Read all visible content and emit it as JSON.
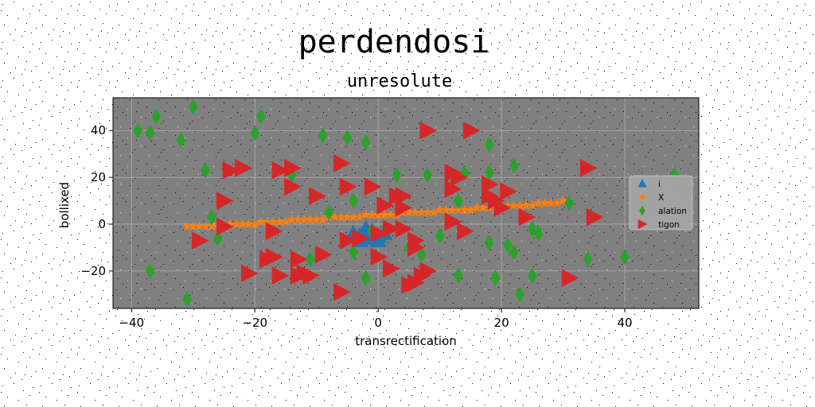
{
  "chart_data": {
    "type": "scatter",
    "suptitle": "perdendosi",
    "title": "unresolute",
    "xlabel": "transrectification",
    "ylabel": "bollixed",
    "xlim": [
      -43,
      52
    ],
    "ylim": [
      -36,
      54
    ],
    "xticks": [
      -40,
      -20,
      0,
      20,
      40
    ],
    "yticks": [
      -20,
      0,
      20,
      40
    ],
    "xtick_labels": [
      "−40",
      "−20",
      "0",
      "20",
      "40"
    ],
    "ytick_labels": [
      "−20",
      "0",
      "20",
      "40"
    ],
    "grid": true,
    "legend_position": "right",
    "plot_background": "#808080",
    "series": [
      {
        "name": "i",
        "marker": "triangle-up",
        "color": "#1f77b4",
        "points": [
          [
            -4,
            -4
          ],
          [
            -3,
            -5
          ],
          [
            -2,
            -6
          ],
          [
            -1,
            -3
          ],
          [
            0,
            -5
          ],
          [
            -2,
            -2
          ],
          [
            -3,
            -7
          ],
          [
            0,
            -7
          ],
          [
            1,
            -4
          ],
          [
            -1,
            -6
          ]
        ]
      },
      {
        "name": "X",
        "marker": "star",
        "color": "#ff7f0e",
        "points": [
          [
            -31,
            -1
          ],
          [
            -30,
            -1
          ],
          [
            -29,
            -1
          ],
          [
            -28,
            -1
          ],
          [
            -27,
            -1
          ],
          [
            -26,
            0
          ],
          [
            -25,
            0
          ],
          [
            -24,
            0
          ],
          [
            -23,
            0
          ],
          [
            -22,
            0
          ],
          [
            -21,
            0
          ],
          [
            -20,
            0
          ],
          [
            -19,
            1
          ],
          [
            -18,
            1
          ],
          [
            -17,
            1
          ],
          [
            -16,
            1
          ],
          [
            -15,
            1
          ],
          [
            -14,
            2
          ],
          [
            -13,
            2
          ],
          [
            -12,
            2
          ],
          [
            -11,
            2
          ],
          [
            -10,
            2
          ],
          [
            -9,
            2
          ],
          [
            -8,
            3
          ],
          [
            -7,
            3
          ],
          [
            -6,
            3
          ],
          [
            -5,
            3
          ],
          [
            -4,
            3
          ],
          [
            -3,
            3
          ],
          [
            -2,
            4
          ],
          [
            -1,
            4
          ],
          [
            0,
            4
          ],
          [
            1,
            4
          ],
          [
            2,
            4
          ],
          [
            3,
            4
          ],
          [
            4,
            5
          ],
          [
            5,
            5
          ],
          [
            6,
            5
          ],
          [
            7,
            5
          ],
          [
            8,
            5
          ],
          [
            9,
            5
          ],
          [
            10,
            6
          ],
          [
            11,
            6
          ],
          [
            12,
            6
          ],
          [
            13,
            6
          ],
          [
            14,
            6
          ],
          [
            15,
            6
          ],
          [
            16,
            7
          ],
          [
            17,
            7
          ],
          [
            18,
            7
          ],
          [
            19,
            7
          ],
          [
            20,
            7
          ],
          [
            21,
            8
          ],
          [
            22,
            8
          ],
          [
            23,
            8
          ],
          [
            24,
            8
          ],
          [
            25,
            8
          ],
          [
            26,
            9
          ],
          [
            27,
            9
          ],
          [
            28,
            9
          ],
          [
            29,
            9
          ],
          [
            30,
            10
          ]
        ]
      },
      {
        "name": "alation",
        "marker": "diamond",
        "color": "#2ca02c",
        "points": [
          [
            -39,
            40
          ],
          [
            -37,
            39
          ],
          [
            -36,
            46
          ],
          [
            -32,
            36
          ],
          [
            -30,
            50
          ],
          [
            -28,
            23
          ],
          [
            -27,
            3
          ],
          [
            -26,
            -6
          ],
          [
            -20,
            39
          ],
          [
            -19,
            46
          ],
          [
            -14,
            21
          ],
          [
            -11,
            -15
          ],
          [
            -9,
            38
          ],
          [
            -8,
            5
          ],
          [
            -5,
            37
          ],
          [
            -4,
            10
          ],
          [
            -4,
            -12
          ],
          [
            -2,
            35
          ],
          [
            -2,
            -23
          ],
          [
            -1,
            -3
          ],
          [
            3,
            21
          ],
          [
            5,
            -10
          ],
          [
            7,
            -13
          ],
          [
            8,
            21
          ],
          [
            10,
            -5
          ],
          [
            13,
            10
          ],
          [
            13,
            -22
          ],
          [
            14,
            22
          ],
          [
            18,
            34
          ],
          [
            18,
            22
          ],
          [
            18,
            -8
          ],
          [
            19,
            -23
          ],
          [
            21,
            -9
          ],
          [
            22,
            25
          ],
          [
            22,
            -12
          ],
          [
            23,
            -30
          ],
          [
            25,
            -22
          ],
          [
            25,
            -2
          ],
          [
            26,
            -4
          ],
          [
            31,
            9
          ],
          [
            34,
            -15
          ],
          [
            40,
            -14
          ],
          [
            48,
            21
          ],
          [
            -37,
            -20
          ],
          [
            -31,
            -32
          ]
        ]
      },
      {
        "name": "tigon",
        "marker": "triangle-right",
        "color": "#d62728",
        "points": [
          [
            -29,
            -7
          ],
          [
            -25,
            10
          ],
          [
            -25,
            -1
          ],
          [
            -24,
            23
          ],
          [
            -22,
            24
          ],
          [
            -21,
            -21
          ],
          [
            -18,
            -15
          ],
          [
            -17,
            -3
          ],
          [
            -17,
            -14
          ],
          [
            -16,
            23
          ],
          [
            -16,
            -22
          ],
          [
            -14,
            24
          ],
          [
            -14,
            16
          ],
          [
            -13,
            -15
          ],
          [
            -13,
            -22
          ],
          [
            -12,
            -21
          ],
          [
            -11,
            -22
          ],
          [
            -10,
            12
          ],
          [
            -9,
            -13
          ],
          [
            -6,
            26
          ],
          [
            -6,
            -29
          ],
          [
            -5,
            16
          ],
          [
            -5,
            -7
          ],
          [
            -3,
            -6
          ],
          [
            -1,
            16
          ],
          [
            0,
            -14
          ],
          [
            0,
            -4
          ],
          [
            1,
            8
          ],
          [
            2,
            -19
          ],
          [
            3,
            12
          ],
          [
            4,
            12
          ],
          [
            4,
            7
          ],
          [
            4,
            -2
          ],
          [
            5,
            -26
          ],
          [
            6,
            -7
          ],
          [
            6,
            -10
          ],
          [
            6,
            -25
          ],
          [
            7,
            -22
          ],
          [
            8,
            -20
          ],
          [
            8,
            40
          ],
          [
            12,
            22
          ],
          [
            12,
            15
          ],
          [
            12,
            1
          ],
          [
            13,
            20
          ],
          [
            14,
            -3
          ],
          [
            15,
            40
          ],
          [
            18,
            17
          ],
          [
            18,
            12
          ],
          [
            19,
            10
          ],
          [
            20,
            7
          ],
          [
            21,
            14
          ],
          [
            24,
            3
          ],
          [
            31,
            -23
          ],
          [
            34,
            24
          ],
          [
            35,
            3
          ],
          [
            2,
            -2
          ]
        ]
      }
    ]
  }
}
